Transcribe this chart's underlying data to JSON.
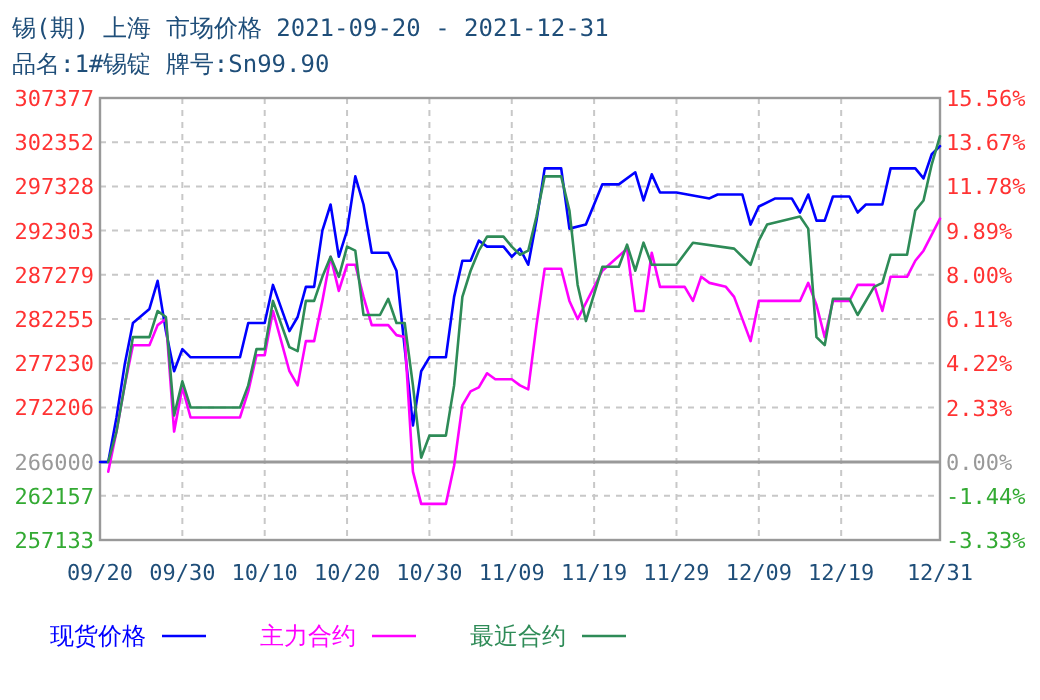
{
  "chart_data": {
    "type": "line",
    "title": "锡(期) 上海  市场价格  2021-09-20 - 2021-12-31",
    "subtitle": "品名:1#锡锭  牌号:Sn99.90",
    "xlim": [
      "2021-09-20",
      "2021-12-31"
    ],
    "xticks": [
      {
        "value": "2021-09-20",
        "label": "09/20"
      },
      {
        "value": "2021-09-30",
        "label": "09/30"
      },
      {
        "value": "2021-10-10",
        "label": "10/10"
      },
      {
        "value": "2021-10-20",
        "label": "10/20"
      },
      {
        "value": "2021-10-30",
        "label": "10/30"
      },
      {
        "value": "2021-11-09",
        "label": "11/09"
      },
      {
        "value": "2021-11-19",
        "label": "11/19"
      },
      {
        "value": "2021-11-29",
        "label": "11/29"
      },
      {
        "value": "2021-12-09",
        "label": "12/09"
      },
      {
        "value": "2021-12-19",
        "label": "12/19"
      },
      {
        "value": "2021-12-31",
        "label": "12/31"
      }
    ],
    "ylim": [
      257133,
      307377
    ],
    "yticks": [
      257133,
      262157,
      266000,
      272206,
      277230,
      282255,
      287279,
      292303,
      297328,
      302352,
      307377
    ],
    "y2lim": [
      -3.33,
      15.56
    ],
    "y2ticks": [
      {
        "value": -3.33,
        "label": "-3.33%"
      },
      {
        "value": -1.44,
        "label": "-1.44%"
      },
      {
        "value": 0,
        "label": "0.00%"
      },
      {
        "value": 2.33,
        "label": "2.33%"
      },
      {
        "value": 4.22,
        "label": "4.22%"
      },
      {
        "value": 6.11,
        "label": "6.11%"
      },
      {
        "value": 8.0,
        "label": "8.00%"
      },
      {
        "value": 9.89,
        "label": "9.89%"
      },
      {
        "value": 11.78,
        "label": "11.78%"
      },
      {
        "value": 13.67,
        "label": "13.67%"
      },
      {
        "value": 15.56,
        "label": "15.56%"
      }
    ],
    "grid": true,
    "legend": "bottom",
    "line_style": "solid",
    "marker": "none",
    "ref_lines": [
      {
        "axis": "y",
        "value": 266000,
        "color": "#999999"
      }
    ],
    "series": [
      {
        "name": "现货价格",
        "color": "#0000ff",
        "x": [
          "2021-09-20",
          "2021-09-21",
          "2021-09-22",
          "2021-09-23",
          "2021-09-24",
          "2021-09-26",
          "2021-09-27",
          "2021-09-28",
          "2021-09-29",
          "2021-09-30",
          "2021-10-01",
          "2021-10-07",
          "2021-10-08",
          "2021-10-10",
          "2021-10-11",
          "2021-10-13",
          "2021-10-14",
          "2021-10-15",
          "2021-10-16",
          "2021-10-17",
          "2021-10-18",
          "2021-10-19",
          "2021-10-20",
          "2021-10-21",
          "2021-10-22",
          "2021-10-23",
          "2021-10-25",
          "2021-10-26",
          "2021-10-28",
          "2021-10-29",
          "2021-10-30",
          "2021-11-01",
          "2021-11-02",
          "2021-11-03",
          "2021-11-04",
          "2021-11-05",
          "2021-11-06",
          "2021-11-08",
          "2021-11-09",
          "2021-11-10",
          "2021-11-11",
          "2021-11-12",
          "2021-11-13",
          "2021-11-15",
          "2021-11-16",
          "2021-11-18",
          "2021-11-20",
          "2021-11-22",
          "2021-11-24",
          "2021-11-25",
          "2021-11-26",
          "2021-11-27",
          "2021-11-29",
          "2021-12-03",
          "2021-12-04",
          "2021-12-07",
          "2021-12-08",
          "2021-12-09",
          "2021-12-11",
          "2021-12-13",
          "2021-12-14",
          "2021-12-15",
          "2021-12-16",
          "2021-12-17",
          "2021-12-18",
          "2021-12-20",
          "2021-12-21",
          "2021-12-22",
          "2021-12-24",
          "2021-12-25",
          "2021-12-28",
          "2021-12-29",
          "2021-12-30",
          "2021-12-31"
        ],
        "values": [
          266000,
          266000,
          271060,
          277070,
          281800,
          283400,
          286590,
          280880,
          276320,
          278830,
          277900,
          277900,
          281800,
          281800,
          286130,
          280880,
          282480,
          285910,
          285910,
          292300,
          295270,
          289330,
          292300,
          298470,
          295270,
          289790,
          289790,
          287740,
          270150,
          276320,
          277900,
          277900,
          284770,
          288880,
          288880,
          291160,
          290480,
          290480,
          289330,
          290250,
          288420,
          293440,
          299380,
          299380,
          292530,
          292990,
          297560,
          297560,
          298930,
          295730,
          298700,
          296640,
          296640,
          295960,
          296410,
          296410,
          292990,
          295040,
          295960,
          295960,
          294360,
          296410,
          293440,
          293440,
          296180,
          296180,
          294360,
          295270,
          295270,
          299380,
          299380,
          298240,
          300980,
          301900
        ]
      },
      {
        "name": "主力合约",
        "color": "#ff00ff",
        "x": [
          "2021-09-21",
          "2021-09-22",
          "2021-09-23",
          "2021-09-24",
          "2021-09-26",
          "2021-09-27",
          "2021-09-28",
          "2021-09-29",
          "2021-09-30",
          "2021-10-01",
          "2021-10-07",
          "2021-10-08",
          "2021-10-09",
          "2021-10-10",
          "2021-10-11",
          "2021-10-13",
          "2021-10-14",
          "2021-10-15",
          "2021-10-16",
          "2021-10-17",
          "2021-10-18",
          "2021-10-19",
          "2021-10-20",
          "2021-10-21",
          "2021-10-22",
          "2021-10-23",
          "2021-10-25",
          "2021-10-26",
          "2021-10-27",
          "2021-10-28",
          "2021-10-29",
          "2021-11-01",
          "2021-11-02",
          "2021-11-03",
          "2021-11-04",
          "2021-11-05",
          "2021-11-06",
          "2021-11-07",
          "2021-11-09",
          "2021-11-10",
          "2021-11-11",
          "2021-11-12",
          "2021-11-13",
          "2021-11-15",
          "2021-11-16",
          "2021-11-17",
          "2021-11-20",
          "2021-11-23",
          "2021-11-24",
          "2021-11-25",
          "2021-11-26",
          "2021-11-27",
          "2021-11-30",
          "2021-12-01",
          "2021-12-02",
          "2021-12-03",
          "2021-12-05",
          "2021-12-06",
          "2021-12-08",
          "2021-12-09",
          "2021-12-14",
          "2021-12-15",
          "2021-12-16",
          "2021-12-17",
          "2021-12-18",
          "2021-12-20",
          "2021-12-21",
          "2021-12-23",
          "2021-12-24",
          "2021-12-25",
          "2021-12-27",
          "2021-12-28",
          "2021-12-29",
          "2021-12-30",
          "2021-12-31"
        ],
        "values": [
          264900,
          269460,
          274710,
          279280,
          279280,
          281560,
          282250,
          269460,
          274490,
          271060,
          271060,
          274030,
          278140,
          278140,
          283170,
          276320,
          274710,
          279740,
          279740,
          284310,
          289330,
          285450,
          288420,
          288420,
          284770,
          281560,
          281560,
          280420,
          280200,
          264900,
          261240,
          261240,
          265580,
          272430,
          274030,
          274490,
          276090,
          275400,
          275400,
          274710,
          274260,
          281560,
          287970,
          287970,
          284310,
          282250,
          287740,
          290250,
          283170,
          283170,
          289790,
          285910,
          285910,
          284310,
          287050,
          286360,
          285910,
          284770,
          279740,
          284310,
          284310,
          286360,
          283850,
          280200,
          284310,
          284310,
          286130,
          286130,
          283170,
          287050,
          287050,
          288880,
          290020,
          291840,
          293670
        ]
      },
      {
        "name": "最近合约",
        "color": "#2e8b57",
        "x": [
          "2021-09-21",
          "2021-09-22",
          "2021-09-23",
          "2021-09-24",
          "2021-09-26",
          "2021-09-27",
          "2021-09-28",
          "2021-09-29",
          "2021-09-30",
          "2021-10-01",
          "2021-10-07",
          "2021-10-08",
          "2021-10-09",
          "2021-10-10",
          "2021-10-11",
          "2021-10-13",
          "2021-10-14",
          "2021-10-15",
          "2021-10-16",
          "2021-10-17",
          "2021-10-18",
          "2021-10-19",
          "2021-10-20",
          "2021-10-21",
          "2021-10-22",
          "2021-10-24",
          "2021-10-25",
          "2021-10-26",
          "2021-10-27",
          "2021-10-28",
          "2021-10-29",
          "2021-10-30",
          "2021-11-01",
          "2021-11-02",
          "2021-11-03",
          "2021-11-04",
          "2021-11-05",
          "2021-11-06",
          "2021-11-08",
          "2021-11-09",
          "2021-11-10",
          "2021-11-11",
          "2021-11-12",
          "2021-11-13",
          "2021-11-15",
          "2021-11-16",
          "2021-11-17",
          "2021-11-18",
          "2021-11-20",
          "2021-11-22",
          "2021-11-23",
          "2021-11-24",
          "2021-11-25",
          "2021-11-26",
          "2021-11-29",
          "2021-12-01",
          "2021-12-06",
          "2021-12-08",
          "2021-12-09",
          "2021-12-10",
          "2021-12-14",
          "2021-12-15",
          "2021-12-16",
          "2021-12-17",
          "2021-12-18",
          "2021-12-20",
          "2021-12-21",
          "2021-12-23",
          "2021-12-24",
          "2021-12-25",
          "2021-12-27",
          "2021-12-28",
          "2021-12-29",
          "2021-12-30",
          "2021-12-31"
        ],
        "values": [
          266000,
          269460,
          274710,
          280200,
          280200,
          283170,
          282480,
          271290,
          275170,
          272200,
          272200,
          274710,
          278830,
          278830,
          284310,
          279050,
          278600,
          284310,
          284310,
          287050,
          289330,
          287050,
          290480,
          290020,
          282710,
          282710,
          284540,
          281800,
          281800,
          274710,
          266490,
          269000,
          269000,
          274710,
          284770,
          287740,
          290020,
          291620,
          291620,
          290480,
          289560,
          290020,
          293900,
          298470,
          298470,
          294590,
          286130,
          282020,
          288190,
          288190,
          290710,
          287740,
          290930,
          288420,
          288420,
          290930,
          290250,
          288420,
          291160,
          292990,
          293900,
          292530,
          280200,
          279280,
          284540,
          284540,
          282710,
          285910,
          286360,
          289560,
          289560,
          294590,
          295730,
          299840,
          303030
        ]
      }
    ]
  }
}
